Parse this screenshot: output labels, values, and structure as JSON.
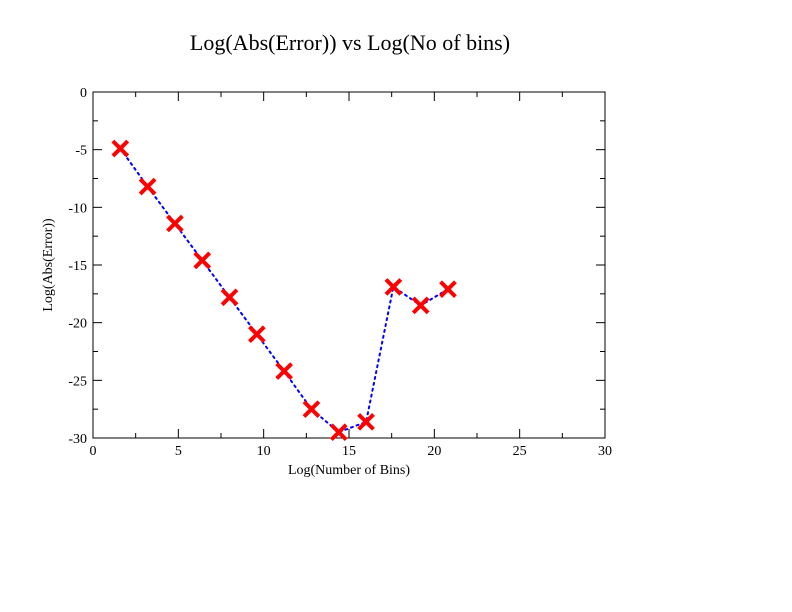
{
  "chart_data": {
    "type": "line",
    "title": "Log(Abs(Error)) vs Log(No of bins)",
    "xlabel": "Log(Number of Bins)",
    "ylabel": "Log(Abs(Error))",
    "xlim": [
      0,
      30
    ],
    "ylim": [
      -30,
      0
    ],
    "x_ticks": [
      "0",
      "5",
      "10",
      "15",
      "20",
      "25",
      "30"
    ],
    "y_ticks": [
      "0",
      "-5",
      "-10",
      "-15",
      "-20",
      "-25",
      "-30"
    ],
    "grid": false,
    "line_style": "dotted",
    "line_color": "#0000ff",
    "marker": "x",
    "marker_color": "#ff0000",
    "series": [
      {
        "x": [
          1.6,
          3.2,
          4.8,
          6.4,
          8.0,
          9.6,
          11.2,
          12.8,
          14.4,
          16.0,
          17.6,
          19.2,
          20.8
        ],
        "y": [
          -4.9,
          -8.2,
          -11.4,
          -14.6,
          -17.8,
          -21.0,
          -24.2,
          -27.5,
          -29.5,
          -28.6,
          -16.9,
          -18.5,
          -17.1
        ]
      }
    ]
  }
}
